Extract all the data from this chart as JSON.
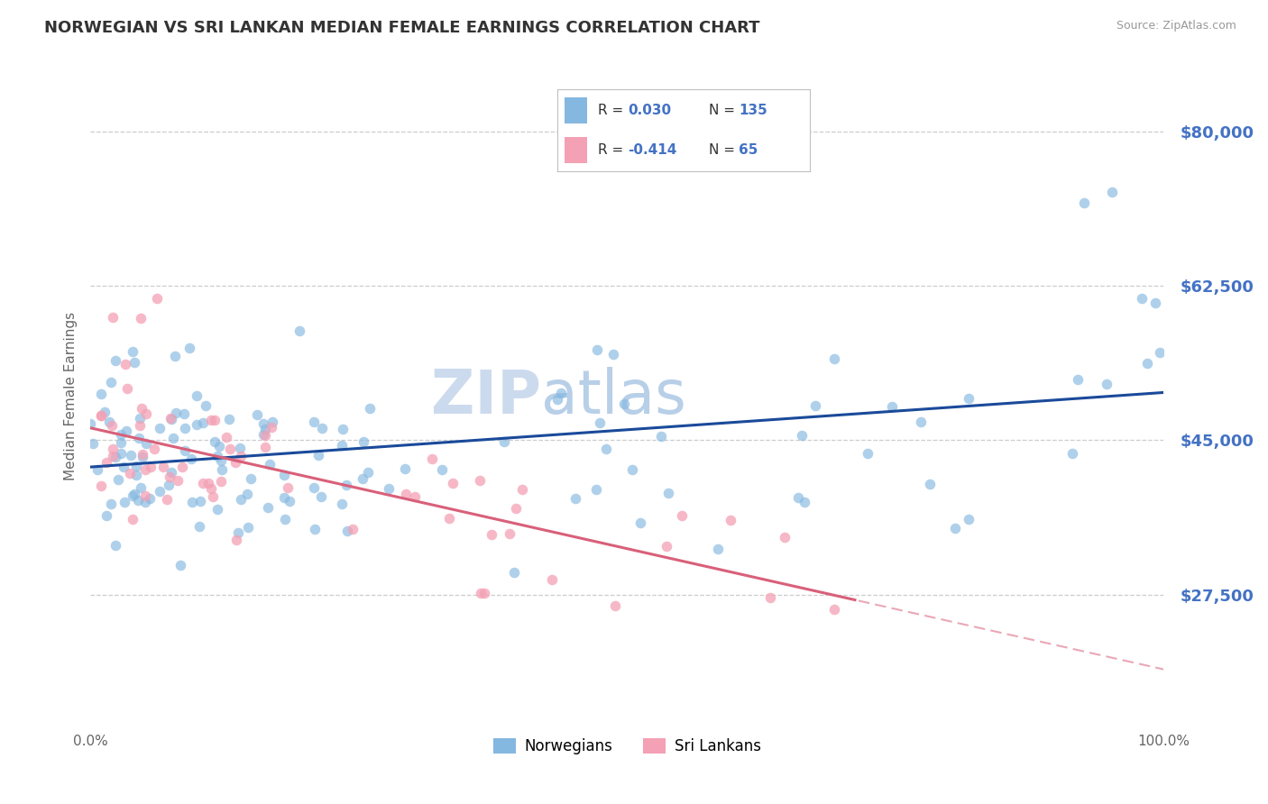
{
  "title": "NORWEGIAN VS SRI LANKAN MEDIAN FEMALE EARNINGS CORRELATION CHART",
  "source_text": "Source: ZipAtlas.com",
  "ylabel": "Median Female Earnings",
  "xlabel": "",
  "y_ticks": [
    27500,
    45000,
    62500,
    80000
  ],
  "y_tick_labels": [
    "$27,500",
    "$45,000",
    "$62,500",
    "$80,000"
  ],
  "ylim": [
    13000,
    87000
  ],
  "xlim": [
    0.0,
    100.0
  ],
  "background_color": "#ffffff",
  "grid_color": "#c8c8c8",
  "title_color": "#333333",
  "title_fontsize": 13,
  "source_fontsize": 9,
  "axis_label_color": "#666666",
  "ytick_color": "#4472c4",
  "xtick_color": "#666666",
  "watermark_text": "ZIPatlas",
  "watermark_color": "#dce8f5",
  "norwegian_color": "#85b8e0",
  "srilanka_color": "#f4a0b5",
  "norwegian_line_color": "#1a4a9a",
  "srilanka_line_color": "#d9607a",
  "legend_color": "#4472c4",
  "norwegian_seed": 101,
  "srilanka_seed": 202
}
